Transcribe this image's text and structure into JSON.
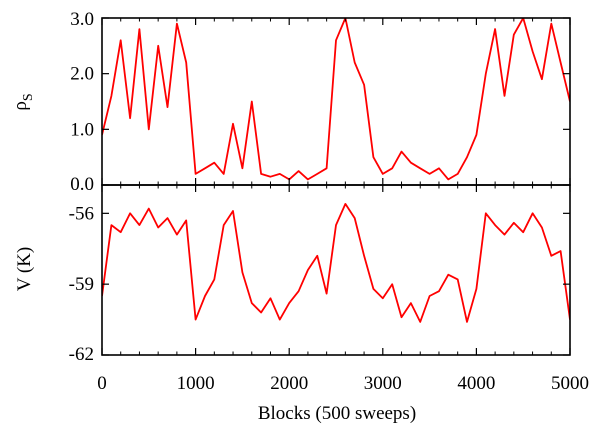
{
  "chart_data": [
    {
      "id": "top",
      "type": "line",
      "ylabel": "ρ",
      "ylabel_sub": "S",
      "xlim": [
        0,
        5000
      ],
      "ylim": [
        0.0,
        3.0
      ],
      "yticks": [
        0.0,
        1.0,
        2.0,
        3.0
      ],
      "ytick_labels": [
        "0.0",
        "1.0",
        "2.0",
        "3.0"
      ],
      "color": "#ff0000",
      "series": [
        {
          "x": [
            0,
            100,
            200,
            300,
            400,
            500,
            600,
            700,
            800,
            900,
            1000,
            1100,
            1200,
            1300,
            1400,
            1500,
            1600,
            1700,
            1800,
            1900,
            2000,
            2100,
            2200,
            2300,
            2400,
            2500,
            2600,
            2700,
            2800,
            2900,
            3000,
            3100,
            3200,
            3300,
            3400,
            3500,
            3600,
            3700,
            3800,
            3900,
            4000,
            4100,
            4200,
            4300,
            4400,
            4500,
            4600,
            4700,
            4800,
            4900,
            5000
          ],
          "y": [
            0.9,
            1.6,
            2.6,
            1.2,
            2.8,
            1.0,
            2.5,
            1.4,
            2.9,
            2.2,
            0.2,
            0.3,
            0.4,
            0.2,
            1.1,
            0.3,
            1.5,
            0.2,
            0.15,
            0.2,
            0.1,
            0.25,
            0.1,
            0.2,
            0.3,
            2.6,
            3.0,
            2.2,
            1.8,
            0.5,
            0.2,
            0.3,
            0.6,
            0.4,
            0.3,
            0.2,
            0.3,
            0.1,
            0.2,
            0.5,
            0.9,
            2.0,
            2.8,
            1.6,
            2.7,
            3.0,
            2.4,
            1.9,
            2.9,
            2.2,
            1.5
          ]
        }
      ]
    },
    {
      "id": "bottom",
      "type": "line",
      "xlabel": "Blocks (500 sweeps)",
      "ylabel": "V (K)",
      "xlim": [
        0,
        5000
      ],
      "ylim": [
        -62,
        -54.8
      ],
      "xticks": [
        0,
        1000,
        2000,
        3000,
        4000,
        5000
      ],
      "xtick_labels": [
        "0",
        "1000",
        "2000",
        "3000",
        "4000",
        "5000"
      ],
      "yticks": [
        -62,
        -59,
        -56
      ],
      "ytick_labels": [
        "-62",
        "-59",
        "-56"
      ],
      "color": "#ff0000",
      "series": [
        {
          "x": [
            0,
            100,
            200,
            300,
            400,
            500,
            600,
            700,
            800,
            900,
            1000,
            1100,
            1200,
            1300,
            1400,
            1500,
            1600,
            1700,
            1800,
            1900,
            2000,
            2100,
            2200,
            2300,
            2400,
            2500,
            2600,
            2700,
            2800,
            2900,
            3000,
            3100,
            3200,
            3300,
            3400,
            3500,
            3600,
            3700,
            3800,
            3900,
            4000,
            4100,
            4200,
            4300,
            4400,
            4500,
            4600,
            4700,
            4800,
            4900,
            5000
          ],
          "y": [
            -59.5,
            -56.5,
            -56.8,
            -56.0,
            -56.5,
            -55.8,
            -56.6,
            -56.2,
            -56.9,
            -56.3,
            -60.5,
            -59.5,
            -58.8,
            -56.5,
            -55.9,
            -58.5,
            -59.8,
            -60.2,
            -59.6,
            -60.5,
            -59.8,
            -59.3,
            -58.4,
            -57.8,
            -59.4,
            -56.5,
            -55.6,
            -56.2,
            -57.8,
            -59.2,
            -59.6,
            -59.0,
            -60.4,
            -59.8,
            -60.6,
            -59.5,
            -59.3,
            -58.6,
            -58.8,
            -60.6,
            -59.2,
            -56.0,
            -56.5,
            -56.9,
            -56.4,
            -56.8,
            -56.0,
            -56.6,
            -57.8,
            -57.6,
            -60.5
          ]
        }
      ]
    }
  ]
}
